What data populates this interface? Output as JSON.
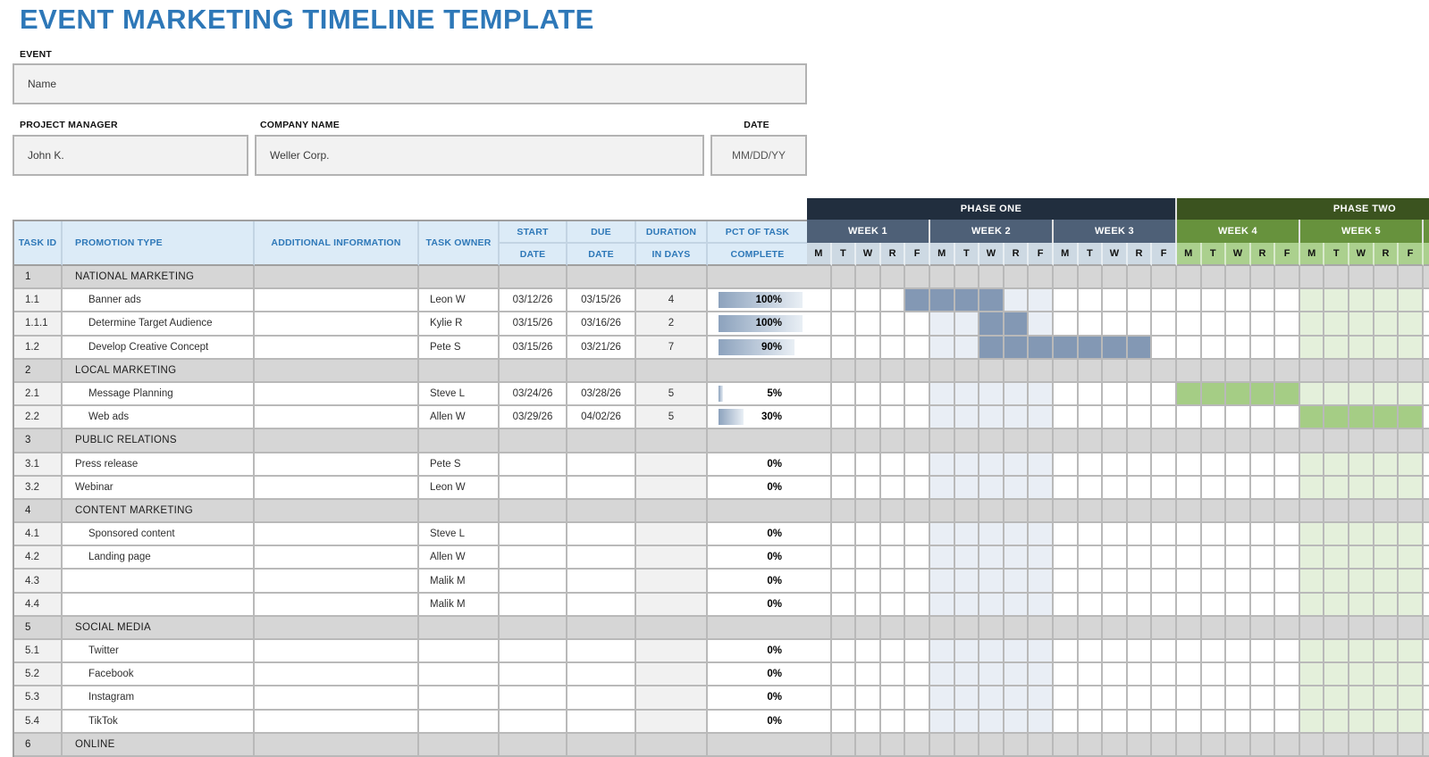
{
  "title": "EVENT MARKETING TIMELINE TEMPLATE",
  "fields": {
    "event_label": "EVENT",
    "event_value": "Name",
    "pm_label": "PROJECT MANAGER",
    "pm_value": "John K.",
    "company_label": "COMPANY NAME",
    "company_value": "Weller Corp.",
    "date_label": "DATE",
    "date_value": "MM/DD/YY"
  },
  "table": {
    "headers": {
      "task_id": "TASK ID",
      "promotion_type": "PROMOTION TYPE",
      "additional_info": "ADDITIONAL INFORMATION",
      "task_owner": "TASK OWNER",
      "start": [
        "START",
        "DATE"
      ],
      "due": [
        "DUE",
        "DATE"
      ],
      "duration": [
        "DURATION",
        "IN DAYS"
      ],
      "pct": [
        "PCT OF TASK",
        "COMPLETE"
      ]
    },
    "rows": [
      {
        "id": "1",
        "type": "section",
        "name": "NATIONAL MARKETING"
      },
      {
        "id": "1.1",
        "name": "Banner ads",
        "indent": 1,
        "owner": "Leon W",
        "start": "03/12/26",
        "due": "03/15/26",
        "duration": "4",
        "pct": "100%",
        "pct_val": 100,
        "bar": {
          "color": "blue",
          "start": 4,
          "len": 4
        }
      },
      {
        "id": "1.1.1",
        "name": "Determine Target Audience",
        "indent": 1,
        "owner": "Kylie R",
        "start": "03/15/26",
        "due": "03/16/26",
        "duration": "2",
        "pct": "100%",
        "pct_val": 100,
        "bar": {
          "color": "blue",
          "start": 7,
          "len": 2
        }
      },
      {
        "id": "1.2",
        "name": "Develop Creative Concept",
        "indent": 1,
        "owner": "Pete S",
        "start": "03/15/26",
        "due": "03/21/26",
        "duration": "7",
        "pct": "90%",
        "pct_val": 90,
        "bar": {
          "color": "blue",
          "start": 7,
          "len": 7
        }
      },
      {
        "id": "2",
        "type": "section",
        "name": "LOCAL MARKETING"
      },
      {
        "id": "2.1",
        "name": "Message Planning",
        "indent": 1,
        "owner": "Steve L",
        "start": "03/24/26",
        "due": "03/28/26",
        "duration": "5",
        "pct": "5%",
        "pct_val": 5,
        "bar": {
          "color": "green",
          "start": 15,
          "len": 5
        }
      },
      {
        "id": "2.2",
        "name": "Web ads",
        "indent": 1,
        "owner": "Allen W",
        "start": "03/29/26",
        "due": "04/02/26",
        "duration": "5",
        "pct": "30%",
        "pct_val": 30,
        "bar": {
          "color": "green",
          "start": 20,
          "len": 5
        }
      },
      {
        "id": "3",
        "type": "section",
        "name": "PUBLIC RELATIONS"
      },
      {
        "id": "3.1",
        "name": "Press release",
        "indent": 0,
        "owner": "Pete S",
        "pct": "0%",
        "pct_val": 0
      },
      {
        "id": "3.2",
        "name": "Webinar",
        "indent": 0,
        "owner": "Leon W",
        "pct": "0%",
        "pct_val": 0
      },
      {
        "id": "4",
        "type": "section",
        "name": "CONTENT MARKETING"
      },
      {
        "id": "4.1",
        "name": "Sponsored content",
        "indent": 1,
        "owner": "Steve L",
        "pct": "0%",
        "pct_val": 0
      },
      {
        "id": "4.2",
        "name": "Landing page",
        "indent": 1,
        "owner": "Allen W",
        "pct": "0%",
        "pct_val": 0
      },
      {
        "id": "4.3",
        "name": "",
        "indent": 1,
        "owner": "Malik M",
        "pct": "0%",
        "pct_val": 0
      },
      {
        "id": "4.4",
        "name": "",
        "indent": 1,
        "owner": "Malik M",
        "pct": "0%",
        "pct_val": 0
      },
      {
        "id": "5",
        "type": "section",
        "name": "SOCIAL MEDIA"
      },
      {
        "id": "5.1",
        "name": "Twitter",
        "indent": 1,
        "owner": "",
        "pct": "0%",
        "pct_val": 0
      },
      {
        "id": "5.2",
        "name": "Facebook",
        "indent": 1,
        "owner": "",
        "pct": "0%",
        "pct_val": 0
      },
      {
        "id": "5.3",
        "name": "Instagram",
        "indent": 1,
        "owner": "",
        "pct": "0%",
        "pct_val": 0
      },
      {
        "id": "5.4",
        "name": "TikTok",
        "indent": 1,
        "owner": "",
        "pct": "0%",
        "pct_val": 0
      },
      {
        "id": "6",
        "type": "section",
        "name": "ONLINE"
      }
    ]
  },
  "gantt": {
    "phases": [
      {
        "label": "PHASE ONE",
        "weeks": [
          "WEEK 1",
          "WEEK 2",
          "WEEK 3"
        ]
      },
      {
        "label": "PHASE TWO",
        "weeks": [
          "WEEK 4",
          "WEEK 5"
        ]
      }
    ],
    "weeks": [
      {
        "label": "WEEK 1",
        "phase": 1
      },
      {
        "label": "WEEK 2",
        "phase": 1
      },
      {
        "label": "WEEK 3",
        "phase": 1
      },
      {
        "label": "WEEK 4",
        "phase": 2
      },
      {
        "label": "WEEK 5",
        "phase": 2
      }
    ],
    "days": [
      "M",
      "T",
      "W",
      "R",
      "F"
    ],
    "highlight_cols_blue": [
      5,
      6,
      7,
      8,
      9
    ],
    "highlight_cols_green": [
      20,
      21,
      22,
      23,
      24
    ]
  },
  "colors": {
    "accent_blue": "#2e78b8",
    "header_fill": "#dcebf7",
    "phase1": "#212e3e",
    "phase2": "#3b531f",
    "week_blue": "#4e6077",
    "week_green": "#67923d",
    "day_blue": "#cdd9e3",
    "day_green": "#abd08e",
    "bar_blue": "#8398b4",
    "bar_green": "#a5cd85",
    "pale_blue": "#e9eef5",
    "pale_green": "#e4f0db",
    "section_gray": "#d6d6d6",
    "cell_light": "#f1f1f1",
    "field_fill": "#f2f2f2",
    "grid": "#b9b9b9",
    "databar_start": "#8ca2bd",
    "databar_end": "#e9eff5"
  }
}
